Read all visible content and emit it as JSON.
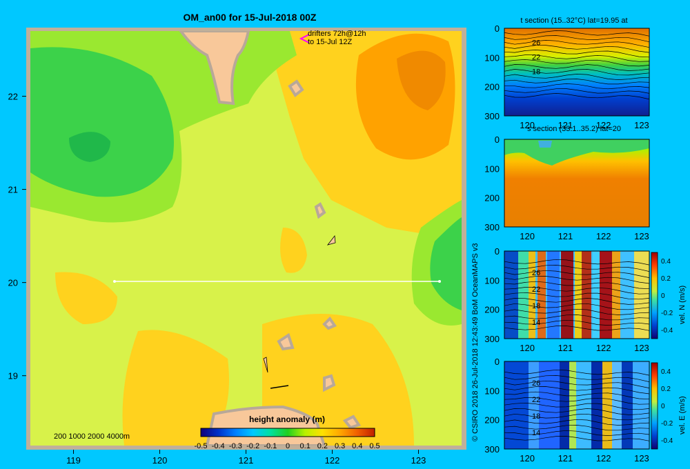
{
  "colors": {
    "background": "#00c8ff",
    "frame": "#c0b09a",
    "land": "#f8c89a",
    "land_shadow": "#b8a898",
    "drifter_marker": "#ff00ff",
    "section_line": "#ffffff"
  },
  "main_map": {
    "title": "OM_an00 for 15-Jul-2018 00Z",
    "drifter_note_line1": "drifters 72h@12h",
    "drifter_note_line2": "to 15-Jul 12Z",
    "depth_legend": "200  1000  2000  4000m",
    "credit": "© CSIRO 2018   26-Jul-2018 12:43:49 BoM OceanMAPS v3",
    "colorbar": {
      "title": "height anomaly  (m)",
      "ticks": [
        "-0.5",
        "-0.4",
        "-0.3",
        "-0.2",
        "-0.1",
        "0",
        "0.1",
        "0.2",
        "0.3",
        "0.4",
        "0.5"
      ]
    }
  },
  "chart_data": [
    {
      "type": "heatmap",
      "id": "main-map",
      "title": "OM_an00 for 15-Jul-2018 00Z",
      "xlabel": "",
      "ylabel": "",
      "xlim": [
        118.5,
        123.5
      ],
      "ylim": [
        18.25,
        22.7
      ],
      "xticks": [
        "119",
        "120",
        "121",
        "122",
        "123"
      ],
      "yticks": [
        "19",
        "20",
        "21",
        "22"
      ],
      "colorbar_label": "height anomaly  (m)",
      "colorbar_range": [
        -0.5,
        0.5
      ],
      "section_line": {
        "lat": 20,
        "lon_start": 119.5,
        "lon_end": 123.2
      },
      "features": [
        {
          "name": "low",
          "lon": 119.2,
          "lat": 21.5,
          "value": 0.0
        },
        {
          "name": "high",
          "lon": 123.0,
          "lat": 22.2,
          "value": 0.35
        },
        {
          "name": "low",
          "lon": 123.3,
          "lat": 20.2,
          "value": 0.05
        }
      ]
    },
    {
      "type": "heatmap",
      "id": "t-section",
      "title": "t section (15..32°C) lat=19.95 at",
      "xticks": [
        "120",
        "121",
        "122",
        "123"
      ],
      "yticks": [
        "0",
        "100",
        "200",
        "300"
      ],
      "ylim": [
        300,
        0
      ],
      "contour_labels": [
        "26",
        "22",
        "18"
      ]
    },
    {
      "type": "heatmap",
      "id": "s-section",
      "title": "s section (33.1..35.2) lat=20",
      "xticks": [
        "120",
        "121",
        "122",
        "123"
      ],
      "yticks": [
        "0",
        "100",
        "200",
        "300"
      ],
      "ylim": [
        300,
        0
      ]
    },
    {
      "type": "heatmap",
      "id": "vn-section",
      "title": "",
      "xticks": [
        "120",
        "121",
        "122",
        "123"
      ],
      "yticks": [
        "0",
        "100",
        "200",
        "300"
      ],
      "ylim": [
        300,
        0
      ],
      "contour_labels": [
        "26",
        "22",
        "18",
        "14"
      ],
      "colorbar_label": "vel. N  (m/s)",
      "colorbar_ticks": [
        "0.4",
        "0.2",
        "0",
        "-0.2",
        "-0.4"
      ]
    },
    {
      "type": "heatmap",
      "id": "ve-section",
      "title": "",
      "xticks": [
        "120",
        "121",
        "122",
        "123"
      ],
      "yticks": [
        "0",
        "100",
        "200",
        "300"
      ],
      "ylim": [
        300,
        0
      ],
      "contour_labels": [
        "26",
        "22",
        "18",
        "14"
      ],
      "colorbar_label": "vel. E  (m/s)",
      "colorbar_ticks": [
        "0.4",
        "0.2",
        "0",
        "-0.2",
        "-0.4"
      ]
    }
  ]
}
